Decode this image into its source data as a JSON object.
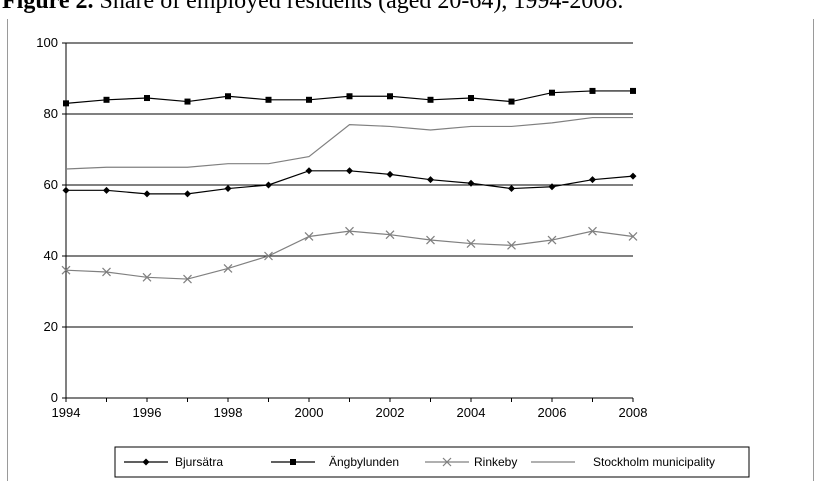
{
  "figure": {
    "label": "Figure 2.",
    "caption": "Share of employed residents (aged 20-64), 1994-2008."
  },
  "chart_data": {
    "type": "line",
    "title": "Share of employed residents (aged 20-64), 1994-2008.",
    "xlabel": "",
    "ylabel": "",
    "xlim": [
      1994,
      2008
    ],
    "ylim": [
      0,
      100
    ],
    "x_ticks": [
      "1994",
      "1996",
      "1998",
      "2000",
      "2002",
      "2004",
      "2006",
      "2008"
    ],
    "y_ticks": [
      "0",
      "20",
      "40",
      "60",
      "80",
      "100"
    ],
    "grid": "horizontal",
    "legend_position": "bottom",
    "x": [
      1994,
      1995,
      1996,
      1997,
      1998,
      1999,
      2000,
      2001,
      2002,
      2003,
      2004,
      2005,
      2006,
      2007,
      2008
    ],
    "series": [
      {
        "name": "Bjursätra",
        "marker": "diamond",
        "color": "#000000",
        "values": [
          58.5,
          58.5,
          57.5,
          57.5,
          59,
          60,
          64,
          64,
          63,
          61.5,
          60.5,
          59,
          59.5,
          61.5,
          62.5
        ]
      },
      {
        "name": "Ängbylunden",
        "marker": "square",
        "color": "#000000",
        "values": [
          83,
          84,
          84.5,
          83.5,
          85,
          84,
          84,
          85,
          85,
          84,
          84.5,
          83.5,
          86,
          86.5,
          86.5
        ]
      },
      {
        "name": "Rinkeby",
        "marker": "x",
        "color": "#808080",
        "values": [
          36,
          35.5,
          34,
          33.5,
          36.5,
          40,
          45.5,
          47,
          46,
          44.5,
          43.5,
          43,
          44.5,
          47,
          45.5
        ]
      },
      {
        "name": "Stockholm municipality",
        "marker": "none",
        "color": "#808080",
        "values": [
          64.5,
          65,
          65,
          65,
          66,
          66,
          68,
          77,
          76.5,
          75.5,
          76.5,
          76.5,
          77.5,
          79,
          79
        ]
      }
    ]
  }
}
